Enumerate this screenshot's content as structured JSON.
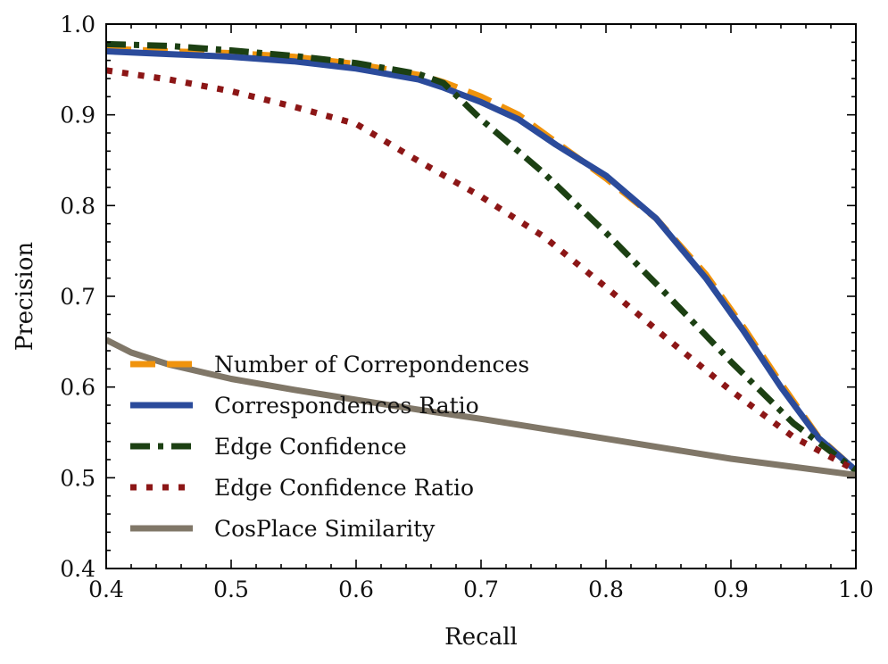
{
  "chart_data": {
    "type": "line",
    "title": "",
    "xlabel": "Recall",
    "ylabel": "Precision",
    "xlim": [
      0.4,
      1.0
    ],
    "ylim": [
      0.4,
      1.0
    ],
    "xticks": [
      0.4,
      0.5,
      0.6,
      0.7,
      0.8,
      0.9,
      1.0
    ],
    "yticks": [
      0.4,
      0.5,
      0.6,
      0.7,
      0.8,
      0.9,
      1.0
    ],
    "tick_labels_x": [
      "0.4",
      "0.5",
      "0.6",
      "0.7",
      "0.8",
      "0.9",
      "1.0"
    ],
    "tick_labels_y": [
      "0.4",
      "0.5",
      "0.6",
      "0.7",
      "0.8",
      "0.9",
      "1.0"
    ],
    "grid": false,
    "legend_position": "lower-left",
    "series": [
      {
        "name": "Number of Correpondences",
        "color": "#f0930c",
        "style": "dashed",
        "points": [
          [
            0.4,
            0.973
          ],
          [
            0.45,
            0.97
          ],
          [
            0.5,
            0.968
          ],
          [
            0.55,
            0.964
          ],
          [
            0.6,
            0.956
          ],
          [
            0.65,
            0.944
          ],
          [
            0.67,
            0.936
          ],
          [
            0.7,
            0.92
          ],
          [
            0.73,
            0.9
          ],
          [
            0.76,
            0.87
          ],
          [
            0.8,
            0.83
          ],
          [
            0.84,
            0.786
          ],
          [
            0.88,
            0.724
          ],
          [
            0.91,
            0.666
          ],
          [
            0.94,
            0.604
          ],
          [
            0.97,
            0.545
          ],
          [
            1.0,
            0.508
          ]
        ]
      },
      {
        "name": "Correspondences Ratio",
        "color": "#2b4b9b",
        "style": "solid",
        "points": [
          [
            0.4,
            0.97
          ],
          [
            0.45,
            0.967
          ],
          [
            0.5,
            0.964
          ],
          [
            0.55,
            0.959
          ],
          [
            0.6,
            0.951
          ],
          [
            0.65,
            0.939
          ],
          [
            0.67,
            0.93
          ],
          [
            0.7,
            0.914
          ],
          [
            0.73,
            0.895
          ],
          [
            0.76,
            0.867
          ],
          [
            0.8,
            0.833
          ],
          [
            0.84,
            0.786
          ],
          [
            0.88,
            0.72
          ],
          [
            0.91,
            0.662
          ],
          [
            0.94,
            0.6
          ],
          [
            0.97,
            0.544
          ],
          [
            1.0,
            0.508
          ]
        ]
      },
      {
        "name": "Edge Confidence",
        "color": "#1c4013",
        "style": "dashdot",
        "points": [
          [
            0.4,
            0.978
          ],
          [
            0.45,
            0.976
          ],
          [
            0.5,
            0.971
          ],
          [
            0.55,
            0.965
          ],
          [
            0.6,
            0.957
          ],
          [
            0.65,
            0.945
          ],
          [
            0.67,
            0.935
          ],
          [
            0.7,
            0.895
          ],
          [
            0.75,
            0.836
          ],
          [
            0.8,
            0.77
          ],
          [
            0.85,
            0.7
          ],
          [
            0.9,
            0.628
          ],
          [
            0.95,
            0.56
          ],
          [
            1.0,
            0.508
          ]
        ]
      },
      {
        "name": "Edge Confidence Ratio",
        "color": "#8c1616",
        "style": "dotted",
        "points": [
          [
            0.4,
            0.949
          ],
          [
            0.45,
            0.939
          ],
          [
            0.5,
            0.926
          ],
          [
            0.55,
            0.909
          ],
          [
            0.6,
            0.89
          ],
          [
            0.65,
            0.849
          ],
          [
            0.7,
            0.81
          ],
          [
            0.75,
            0.766
          ],
          [
            0.8,
            0.71
          ],
          [
            0.85,
            0.652
          ],
          [
            0.9,
            0.596
          ],
          [
            0.95,
            0.545
          ],
          [
            1.0,
            0.508
          ]
        ]
      },
      {
        "name": "CosPlace Similarity",
        "color": "#807768",
        "style": "solid",
        "points": [
          [
            0.4,
            0.652
          ],
          [
            0.42,
            0.638
          ],
          [
            0.45,
            0.625
          ],
          [
            0.5,
            0.609
          ],
          [
            0.55,
            0.597
          ],
          [
            0.6,
            0.586
          ],
          [
            0.65,
            0.575
          ],
          [
            0.7,
            0.565
          ],
          [
            0.75,
            0.554
          ],
          [
            0.8,
            0.543
          ],
          [
            0.85,
            0.532
          ],
          [
            0.9,
            0.521
          ],
          [
            0.95,
            0.512
          ],
          [
            1.0,
            0.503
          ]
        ]
      }
    ]
  }
}
